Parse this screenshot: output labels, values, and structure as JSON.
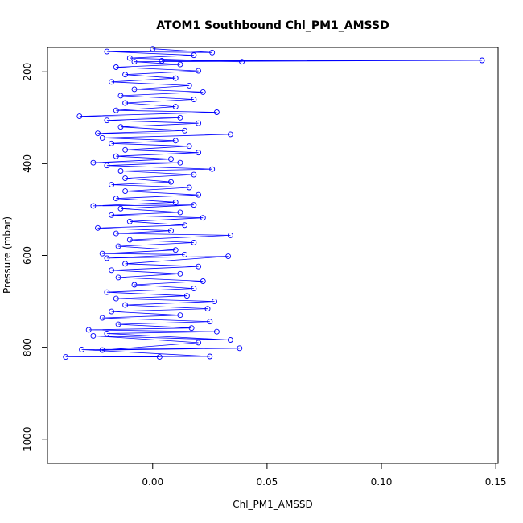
{
  "chart_data": {
    "type": "line",
    "title": "ATOM1 Southbound Chl_PM1_AMSSD",
    "xlabel": "Chl_PM1_AMSSD",
    "ylabel": "Pressure (mbar)",
    "xlim": [
      -0.046,
      0.151
    ],
    "ylim": [
      1053,
      147
    ],
    "y_reversed": true,
    "x_ticks": [
      0.0,
      0.05,
      0.1,
      0.15
    ],
    "x_tick_labels": [
      "0.00",
      "0.05",
      "0.10",
      "0.15"
    ],
    "y_ticks": [
      200,
      400,
      600,
      800,
      1000
    ],
    "y_tick_labels": [
      "200",
      "400",
      "600",
      "800",
      "1000"
    ],
    "grid": false,
    "legend": "none",
    "marker": "open-circle",
    "series_color": "#0000ff",
    "series": [
      {
        "points": [
          [
            0.003,
            821
          ],
          [
            -0.038,
            821
          ],
          [
            0.025,
            820
          ],
          [
            -0.031,
            805
          ],
          [
            0.038,
            802
          ],
          [
            -0.022,
            806
          ],
          [
            0.02,
            790
          ],
          [
            -0.026,
            775
          ],
          [
            0.034,
            784
          ],
          [
            -0.02,
            770
          ],
          [
            0.028,
            766
          ],
          [
            -0.028,
            762
          ],
          [
            0.017,
            758
          ],
          [
            -0.015,
            750
          ],
          [
            0.025,
            744
          ],
          [
            -0.022,
            736
          ],
          [
            0.012,
            730
          ],
          [
            -0.018,
            722
          ],
          [
            0.024,
            716
          ],
          [
            -0.012,
            708
          ],
          [
            0.027,
            700
          ],
          [
            -0.016,
            694
          ],
          [
            0.015,
            688
          ],
          [
            -0.02,
            680
          ],
          [
            0.018,
            672
          ],
          [
            -0.008,
            664
          ],
          [
            0.022,
            656
          ],
          [
            -0.015,
            648
          ],
          [
            0.012,
            640
          ],
          [
            -0.018,
            632
          ],
          [
            0.02,
            624
          ],
          [
            -0.012,
            618
          ],
          [
            0.033,
            602
          ],
          [
            -0.02,
            606
          ],
          [
            0.014,
            598
          ],
          [
            -0.022,
            596
          ],
          [
            0.01,
            588
          ],
          [
            -0.015,
            580
          ],
          [
            0.018,
            572
          ],
          [
            -0.01,
            566
          ],
          [
            0.034,
            556
          ],
          [
            -0.016,
            552
          ],
          [
            0.008,
            546
          ],
          [
            -0.024,
            540
          ],
          [
            0.014,
            534
          ],
          [
            -0.01,
            526
          ],
          [
            0.022,
            518
          ],
          [
            -0.018,
            512
          ],
          [
            0.012,
            506
          ],
          [
            -0.014,
            498
          ],
          [
            0.018,
            490
          ],
          [
            -0.026,
            492
          ],
          [
            0.01,
            484
          ],
          [
            -0.016,
            476
          ],
          [
            0.02,
            468
          ],
          [
            -0.012,
            460
          ],
          [
            0.016,
            452
          ],
          [
            -0.018,
            446
          ],
          [
            0.008,
            440
          ],
          [
            -0.012,
            432
          ],
          [
            0.018,
            424
          ],
          [
            -0.014,
            416
          ],
          [
            0.026,
            412
          ],
          [
            -0.02,
            404
          ],
          [
            0.012,
            398
          ],
          [
            -0.026,
            398
          ],
          [
            0.008,
            390
          ],
          [
            -0.016,
            384
          ],
          [
            0.02,
            376
          ],
          [
            -0.012,
            370
          ],
          [
            0.016,
            362
          ],
          [
            -0.018,
            356
          ],
          [
            0.01,
            350
          ],
          [
            -0.022,
            344
          ],
          [
            0.034,
            336
          ],
          [
            -0.024,
            334
          ],
          [
            0.014,
            328
          ],
          [
            -0.014,
            320
          ],
          [
            0.02,
            312
          ],
          [
            -0.02,
            306
          ],
          [
            0.012,
            300
          ],
          [
            -0.032,
            297
          ],
          [
            0.028,
            288
          ],
          [
            -0.016,
            284
          ],
          [
            0.01,
            276
          ],
          [
            -0.012,
            268
          ],
          [
            0.018,
            260
          ],
          [
            -0.014,
            252
          ],
          [
            0.022,
            244
          ],
          [
            -0.008,
            238
          ],
          [
            0.016,
            230
          ],
          [
            -0.018,
            222
          ],
          [
            0.01,
            214
          ],
          [
            -0.012,
            206
          ],
          [
            0.02,
            198
          ],
          [
            -0.016,
            190
          ],
          [
            0.012,
            184
          ],
          [
            -0.008,
            178
          ],
          [
            0.144,
            175
          ],
          [
            0.004,
            176
          ],
          [
            0.039,
            178
          ],
          [
            -0.01,
            170
          ],
          [
            0.018,
            164
          ],
          [
            -0.02,
            156
          ],
          [
            0.026,
            158
          ],
          [
            0.0,
            150
          ]
        ]
      }
    ]
  }
}
